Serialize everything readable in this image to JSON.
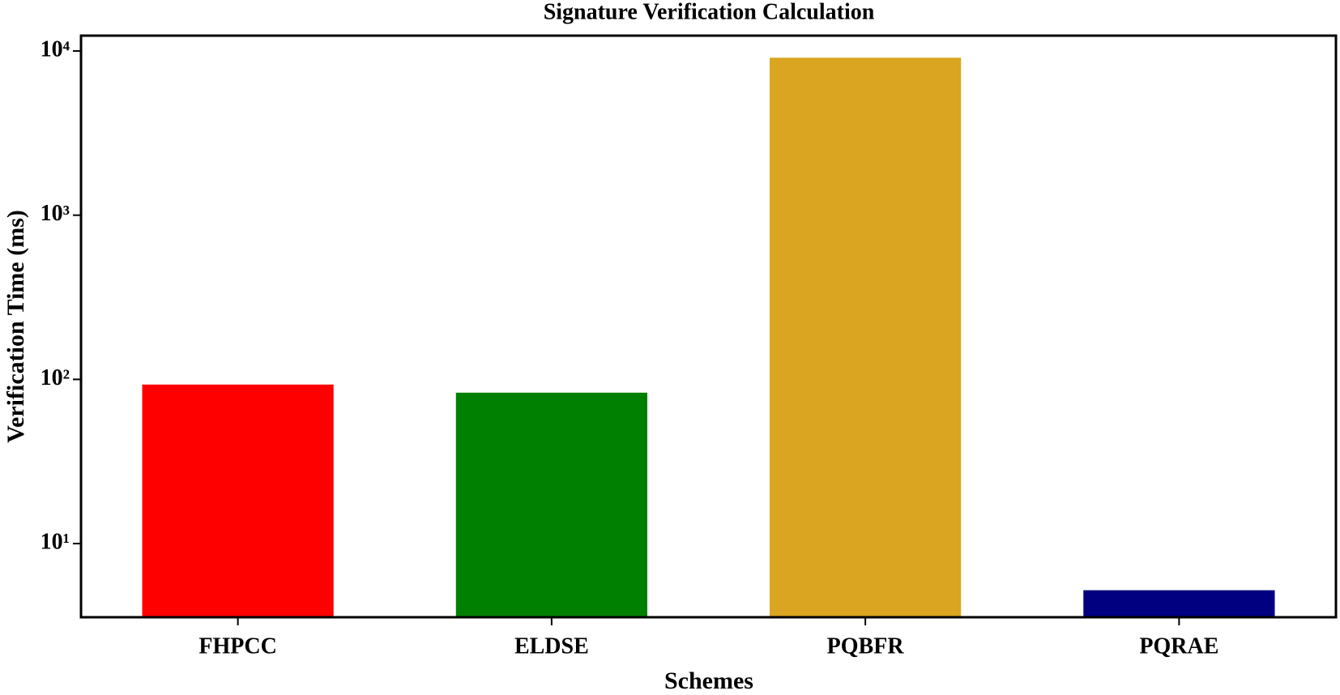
{
  "chart_data": {
    "type": "bar",
    "title": "Signature Verification Calculation",
    "x_label": "Schemes",
    "y_label": "Verification Time (ms)",
    "categories": [
      "FHPCC",
      "ELDSE",
      "PQBFR",
      "PQRAE"
    ],
    "values": [
      93,
      83,
      9100,
      5.2
    ],
    "colors": [
      "#ff0000",
      "#008000",
      "#daa520",
      "#000080"
    ],
    "yscale": "log",
    "ylim": [
      3.56,
      12400
    ],
    "yticks": [
      {
        "value": 10,
        "label": "10¹"
      },
      {
        "value": 100,
        "label": "10²"
      },
      {
        "value": 1000,
        "label": "10³"
      },
      {
        "value": 10000,
        "label": "10⁴"
      }
    ],
    "grid": false
  }
}
